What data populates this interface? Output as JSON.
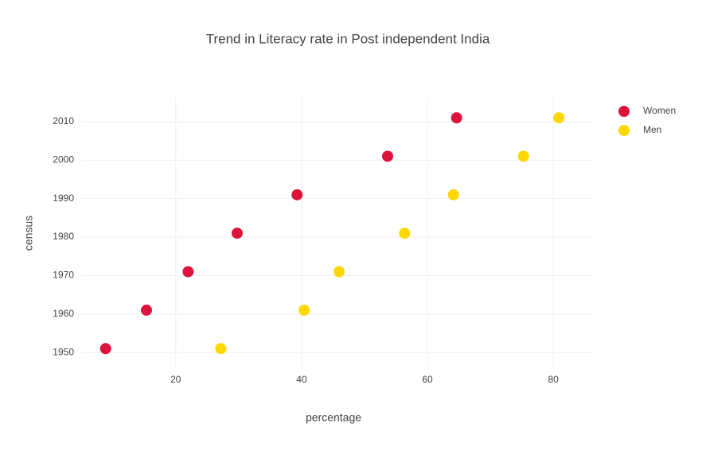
{
  "chart_data": {
    "type": "scatter",
    "title": "Trend in Literacy rate in Post independent India",
    "x_label": "percentage",
    "y_label": "census",
    "series": [
      {
        "name": "Women",
        "color": "#dc143c",
        "x": [
          8.86,
          15.35,
          21.97,
          29.76,
          39.29,
          53.67,
          64.63
        ],
        "y": [
          1951,
          1961,
          1971,
          1981,
          1991,
          2001,
          2011
        ]
      },
      {
        "name": "Men",
        "color": "#ffd700",
        "x": [
          27.16,
          40.4,
          45.96,
          56.38,
          64.13,
          75.26,
          80.88
        ],
        "y": [
          1951,
          1961,
          1971,
          1981,
          1991,
          2001,
          2011
        ]
      }
    ],
    "xlim": [
      5.1,
      86.3
    ],
    "xticks": [
      20,
      40,
      60,
      80
    ],
    "ylim": [
      1946.1,
      2016.4
    ],
    "yticks": [
      1950,
      1960,
      1970,
      1980,
      1990,
      2000,
      2010
    ],
    "grid": true,
    "legend": "top-right"
  }
}
